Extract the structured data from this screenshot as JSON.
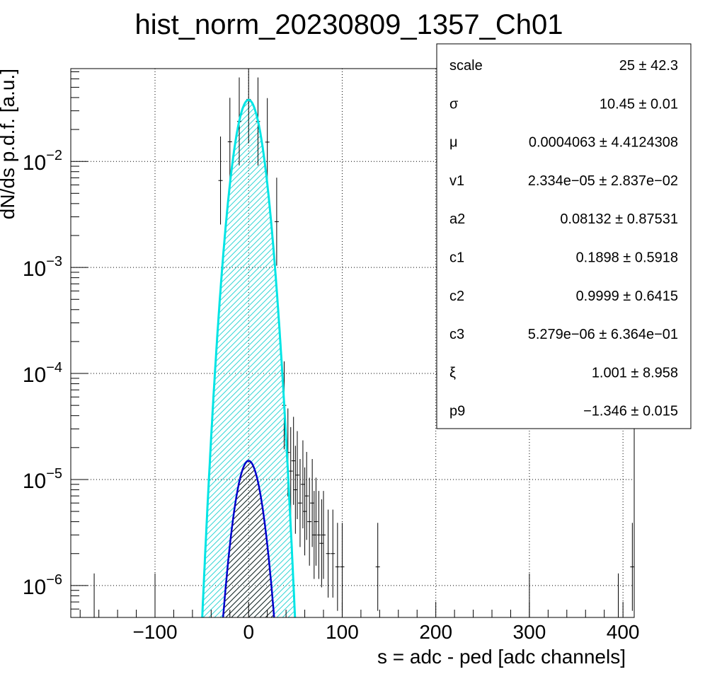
{
  "chart_data": {
    "type": "histogram",
    "title": "hist_norm_20230809_1357_Ch01",
    "xlabel": "s = adc - ped [adc channels]",
    "ylabel": "dN/ds p.d.f. [a.u.]",
    "xlim": [
      -190,
      412
    ],
    "ylim": [
      5e-07,
      0.075
    ],
    "yscale": "log",
    "grid": true,
    "x_ticks": [
      {
        "value": -100,
        "label": "−100"
      },
      {
        "value": 0,
        "label": "0"
      },
      {
        "value": 100,
        "label": "100"
      },
      {
        "value": 200,
        "label": "200"
      },
      {
        "value": 300,
        "label": "300"
      },
      {
        "value": 400,
        "label": "400"
      }
    ],
    "y_ticks": [
      {
        "value": 1e-06,
        "base": "10",
        "exp": "−6"
      },
      {
        "value": 1e-05,
        "base": "10",
        "exp": "−5"
      },
      {
        "value": 0.0001,
        "base": "10",
        "exp": "−4"
      },
      {
        "value": 0.001,
        "base": "10",
        "exp": "−3"
      },
      {
        "value": 0.01,
        "base": "10",
        "exp": "−2"
      }
    ],
    "series": [
      {
        "role": "data",
        "color": "#000000",
        "points": [
          [
            -30,
            0.0066
          ],
          [
            -20,
            0.0153
          ],
          [
            -10,
            0.0238
          ],
          [
            0,
            0.0385
          ],
          [
            10,
            0.0238
          ],
          [
            20,
            0.0152
          ],
          [
            30,
            0.0027
          ],
          [
            38,
            5e-05
          ],
          [
            42,
            1.8e-05
          ],
          [
            45,
            1.2e-05
          ],
          [
            48,
            1.5e-05
          ],
          [
            50,
            8e-06
          ],
          [
            52,
            1.1e-05
          ],
          [
            55,
            6e-06
          ],
          [
            58,
            9e-06
          ],
          [
            60,
            5e-06
          ],
          [
            62,
            7e-06
          ],
          [
            65,
            4e-06
          ],
          [
            68,
            6e-06
          ],
          [
            70,
            3e-06
          ],
          [
            72,
            4e-06
          ],
          [
            75,
            3e-06
          ],
          [
            78,
            2.5e-06
          ],
          [
            80,
            3e-06
          ],
          [
            85,
            2e-06
          ],
          [
            90,
            2e-06
          ],
          [
            95,
            1.5e-06
          ],
          [
            100,
            1.5e-06
          ],
          [
            138,
            1.5e-06
          ],
          [
            -100,
            5e-07
          ],
          [
            -165,
            5e-07
          ],
          [
            300,
            5e-07
          ],
          [
            395,
            5e-07
          ],
          [
            410,
            1.5e-06
          ]
        ]
      },
      {
        "role": "total-fit",
        "color": "#00e5e5",
        "peak": 0.038,
        "mean": 0.0,
        "sigma": 10.45
      },
      {
        "role": "peak-fit",
        "color": "#ff0000",
        "peak": 0.038,
        "mean": 0.0,
        "sigma": 10.45
      },
      {
        "role": "secondary-component",
        "color": "#0000cc",
        "peak": 1.5e-05,
        "mean": 0.0,
        "sigma": 10.45
      }
    ]
  },
  "stats_box": {
    "rows": [
      {
        "name": "scale",
        "value": "25 ± 42.3"
      },
      {
        "name": "σ",
        "value": "10.45 ± 0.01"
      },
      {
        "name": "μ",
        "value": "0.0004063 ± 4.4124308"
      },
      {
        "name": "v1",
        "value": "2.334e−05 ± 2.837e−02"
      },
      {
        "name": "a2",
        "value": "0.08132 ± 0.87531"
      },
      {
        "name": "c1",
        "value": "0.1898 ± 0.5918"
      },
      {
        "name": "c2",
        "value": "0.9999 ± 0.6415"
      },
      {
        "name": "c3",
        "value": "5.279e−06 ± 6.364e−01"
      },
      {
        "name": "ξ",
        "value": "1.001 ± 8.958"
      },
      {
        "name": "p9",
        "value": "−1.346 ± 0.015"
      }
    ]
  }
}
